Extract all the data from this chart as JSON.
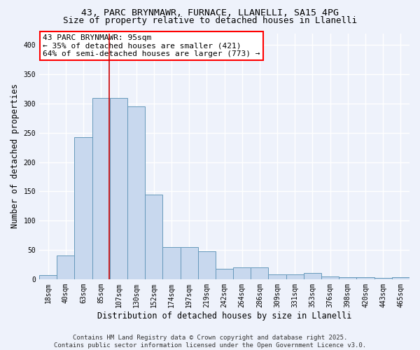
{
  "title1": "43, PARC BRYNMAWR, FURNACE, LLANELLI, SA15 4PG",
  "title2": "Size of property relative to detached houses in Llanelli",
  "xlabel": "Distribution of detached houses by size in Llanelli",
  "ylabel": "Number of detached properties",
  "categories": [
    "18sqm",
    "40sqm",
    "63sqm",
    "85sqm",
    "107sqm",
    "130sqm",
    "152sqm",
    "174sqm",
    "197sqm",
    "219sqm",
    "242sqm",
    "264sqm",
    "286sqm",
    "309sqm",
    "331sqm",
    "353sqm",
    "376sqm",
    "398sqm",
    "420sqm",
    "443sqm",
    "465sqm"
  ],
  "bar_values": [
    7,
    40,
    242,
    310,
    310,
    295,
    145,
    55,
    55,
    48,
    18,
    20,
    20,
    8,
    8,
    10,
    5,
    3,
    3,
    2,
    3
  ],
  "bar_color": "#c8d8ee",
  "bar_edge_color": "#6699bb",
  "bar_edge_width": 0.7,
  "annotation_text": "43 PARC BRYNMAWR: 95sqm\n← 35% of detached houses are smaller (421)\n64% of semi-detached houses are larger (773) →",
  "ylim": [
    0,
    420
  ],
  "yticks": [
    0,
    50,
    100,
    150,
    200,
    250,
    300,
    350,
    400
  ],
  "background_color": "#eef2fb",
  "grid_color": "#ffffff",
  "footer": "Contains HM Land Registry data © Crown copyright and database right 2025.\nContains public sector information licensed under the Open Government Licence v3.0.",
  "title_fontsize": 9.5,
  "subtitle_fontsize": 9,
  "axis_label_fontsize": 8.5,
  "tick_fontsize": 7,
  "annotation_fontsize": 8,
  "footer_fontsize": 6.5
}
